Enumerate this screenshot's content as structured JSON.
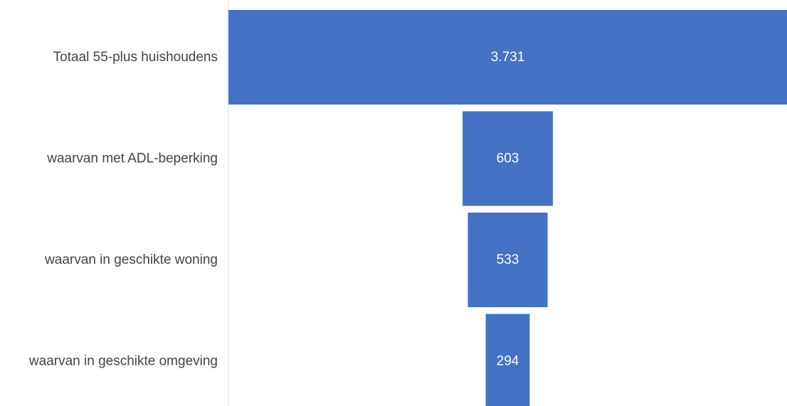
{
  "chart_data": {
    "type": "bar",
    "orientation": "horizontal-funnel",
    "categories": [
      "Totaal 55-plus huishoudens",
      "waarvan met ADL-beperking",
      "waarvan in geschikte woning",
      "waarvan in geschikte omgeving"
    ],
    "values": [
      3731,
      603,
      533,
      294
    ],
    "value_labels": [
      "3.731",
      "603",
      "533",
      "294"
    ],
    "title": "",
    "xlabel": "",
    "ylabel": "",
    "grid": false,
    "legend": "none"
  },
  "colors": {
    "bar": "#4472C4",
    "axis": "#d9d9d9",
    "label": "#444444",
    "value_text": "#ffffff"
  }
}
